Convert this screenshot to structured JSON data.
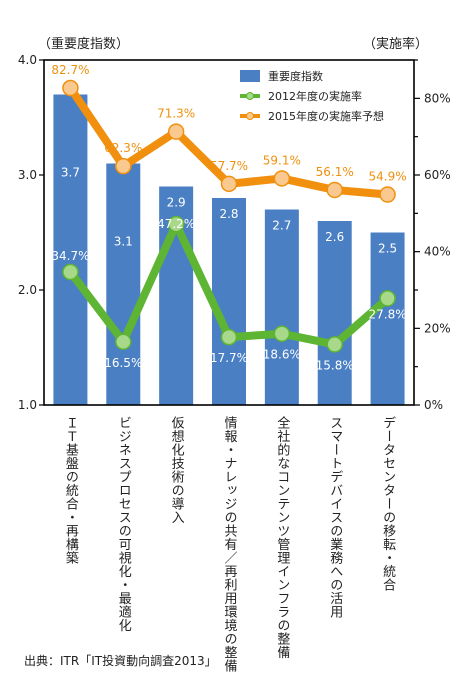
{
  "chart_data": {
    "type": "bar",
    "y_left_label": "（重要度指数）",
    "y_right_label": "（実施率）",
    "y_left_ticks": [
      "4.0",
      "3.0",
      "2.0",
      "1.0"
    ],
    "y_right_ticks": [
      "80%",
      "60%",
      "40%",
      "20%",
      "0%"
    ],
    "ylim_left": [
      1.0,
      4.0
    ],
    "ylim_right": [
      0,
      90
    ],
    "categories": [
      "ＩＴ基盤の統合・再構築",
      "ビジネスプロセスの可視化・最適化",
      "仮想化技術の導入",
      "情報・ナレッジの共有／再利用環境の整備",
      "全社的なコンテンツ管理インフラの整備",
      "スマートデバイスの業務への活用",
      "データセンターの移転・統合"
    ],
    "series": [
      {
        "name": "重要度指数",
        "kind": "bar",
        "axis": "left",
        "color": "#4a7fc4",
        "values": [
          3.7,
          3.1,
          2.9,
          2.8,
          2.7,
          2.6,
          2.5
        ],
        "labels": [
          "3.7",
          "3.1",
          "2.9",
          "2.8",
          "2.7",
          "2.6",
          "2.5"
        ]
      },
      {
        "name": "2012年度の実施率",
        "kind": "line",
        "axis": "right",
        "color": "#5db533",
        "marker_color": "#a8d889",
        "values": [
          34.7,
          16.5,
          47.2,
          17.7,
          18.6,
          15.8,
          27.8
        ],
        "labels": [
          "34.7%",
          "16.5%",
          "47.2%",
          "17.7%",
          "18.6%",
          "15.8%",
          "27.8%"
        ]
      },
      {
        "name": "2015年度の実施率予想",
        "kind": "line",
        "axis": "right",
        "color": "#f0900e",
        "marker_color": "#f9c98f",
        "values": [
          82.7,
          62.3,
          71.3,
          57.7,
          59.1,
          56.1,
          54.9
        ],
        "labels": [
          "82.7%",
          "62.3%",
          "71.3%",
          "57.7%",
          "59.1%",
          "56.1%",
          "54.9%"
        ]
      }
    ],
    "legend": "top-right"
  },
  "source": "出典：ITR「IT投資動向調査2013」"
}
